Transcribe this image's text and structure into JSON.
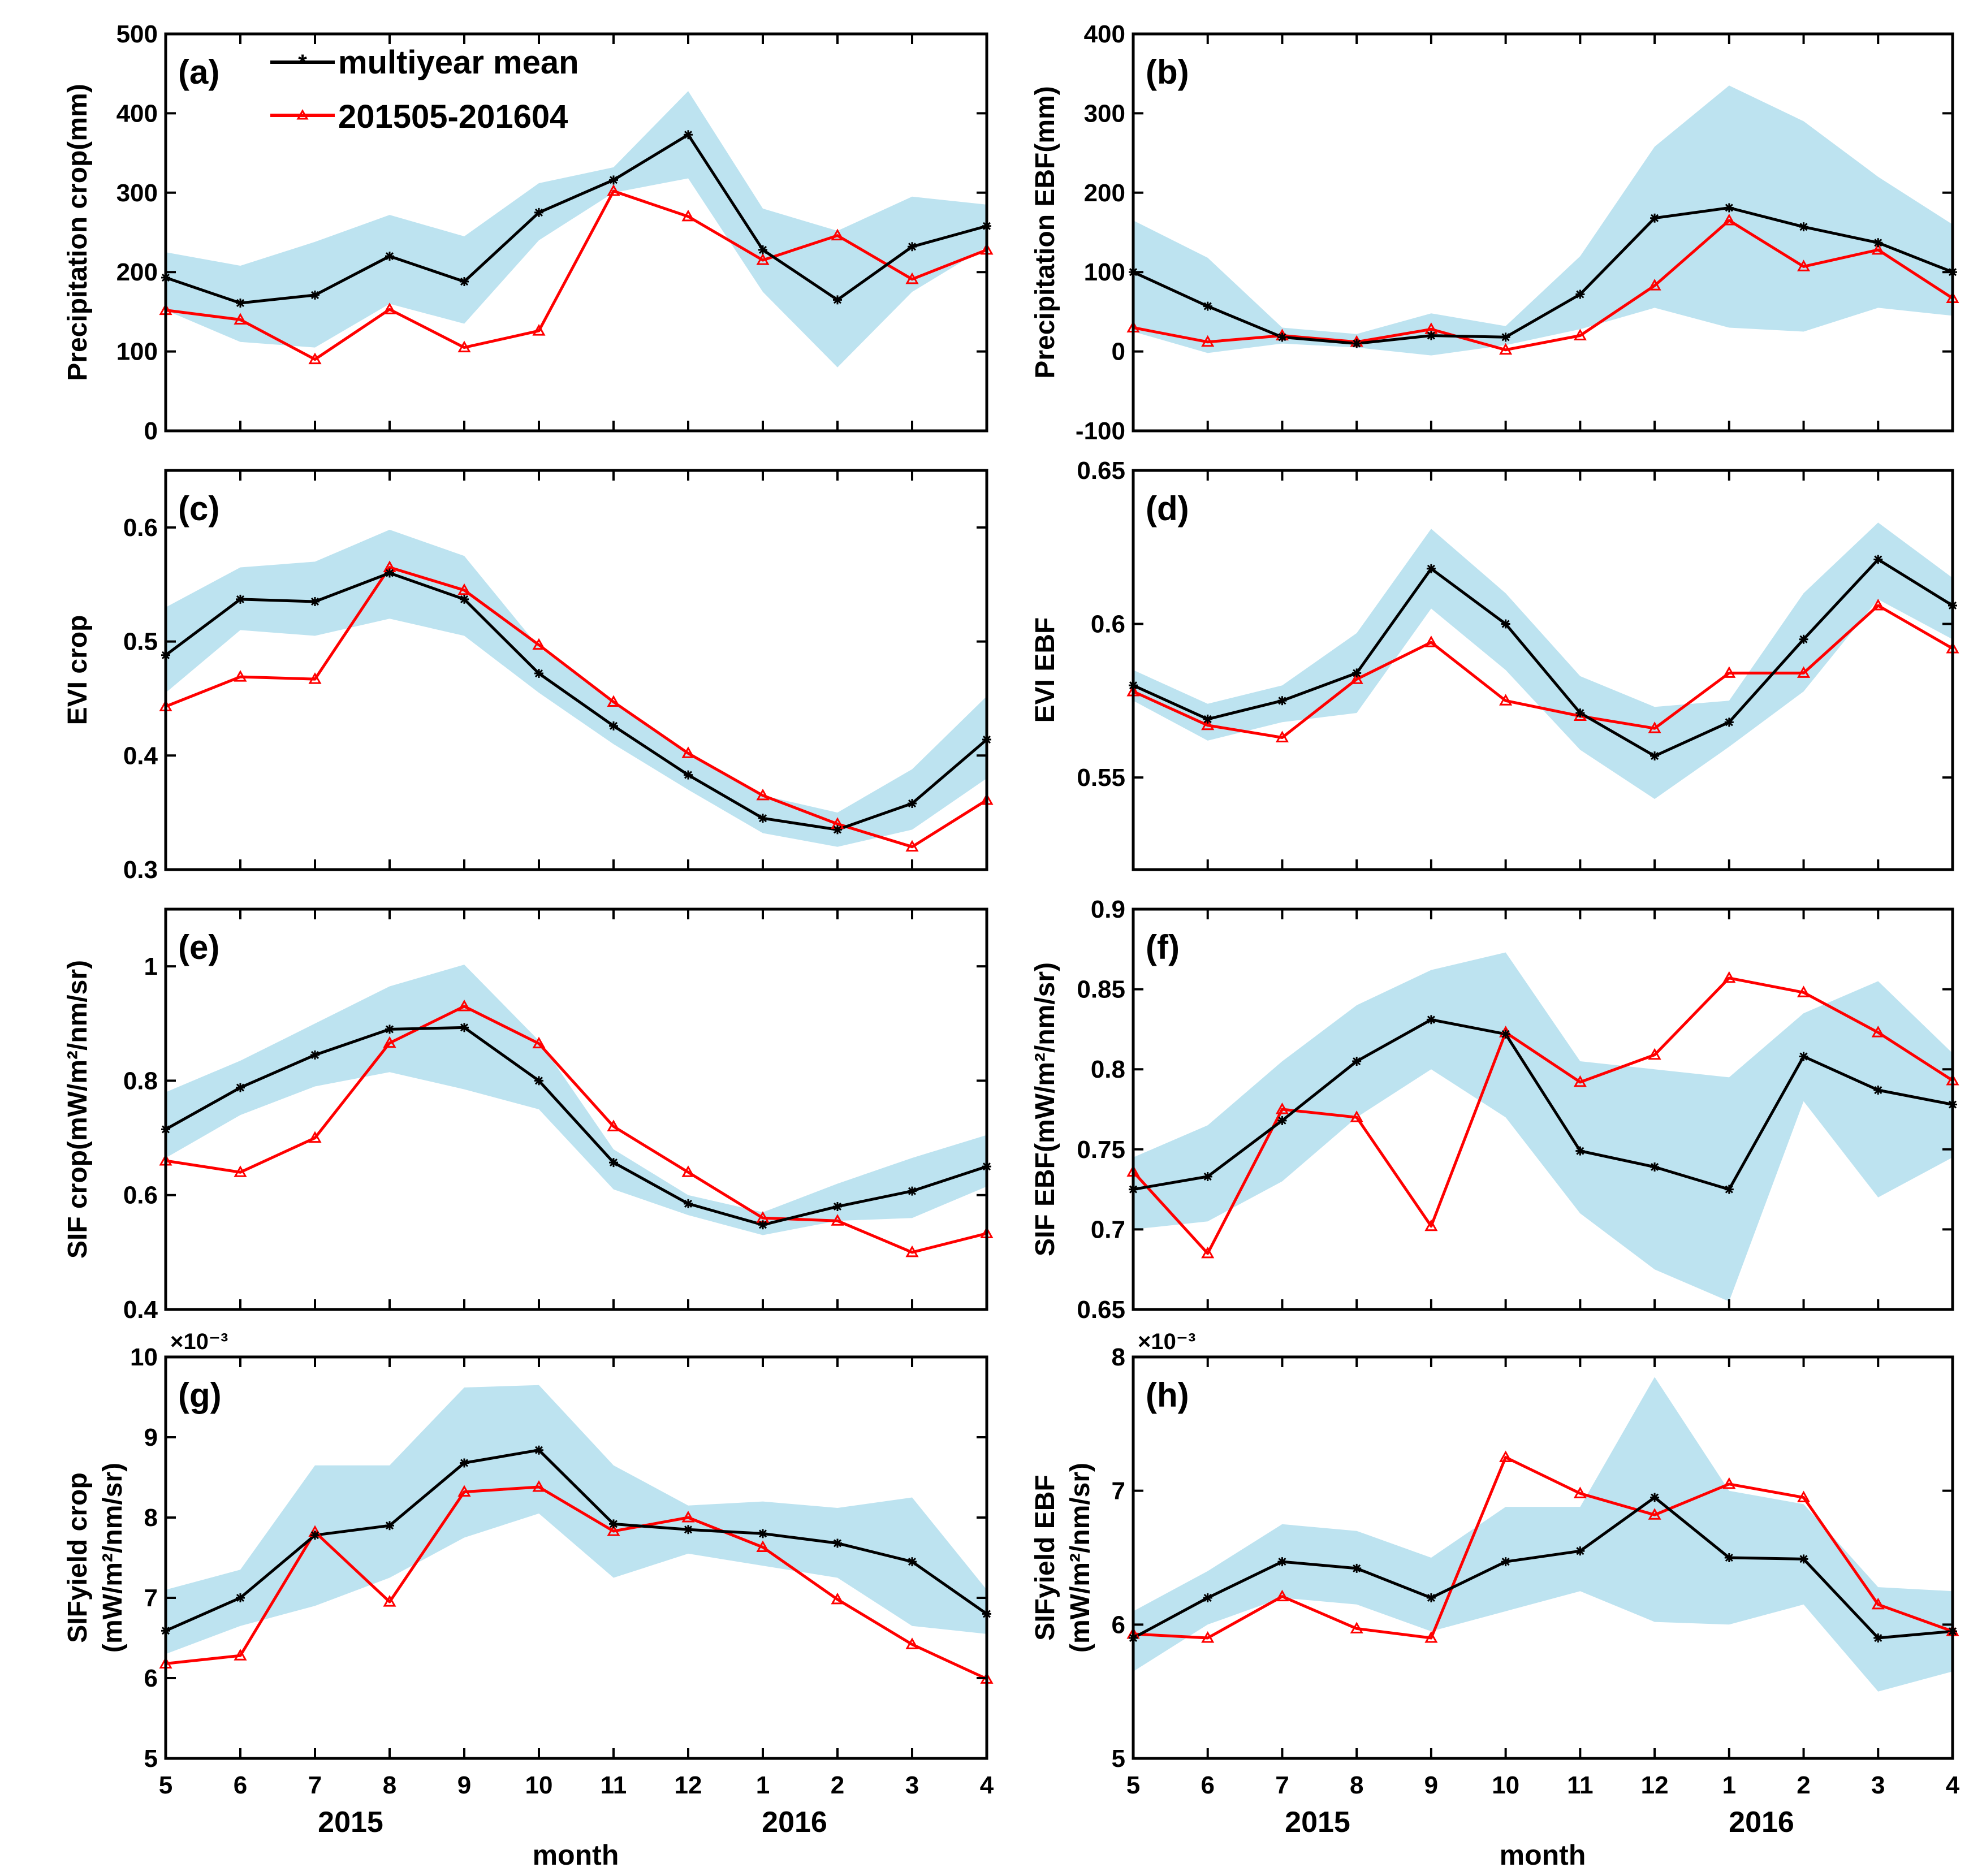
{
  "chart_data": {
    "type": "line",
    "legend": [
      {
        "name": "multiyear mean",
        "color": "#000000",
        "marker": "star"
      },
      {
        "name": "201505-201604",
        "color": "#ff0000",
        "marker": "triangle"
      }
    ],
    "shading_color": "#bde3f0",
    "xlabel": "month",
    "xticks": [
      "5",
      "6",
      "7",
      "8",
      "9",
      "10",
      "11",
      "12",
      "1",
      "2",
      "3",
      "4"
    ],
    "year_labels": [
      "2015",
      "2016"
    ],
    "panels": [
      {
        "label": "(a)",
        "ylabel": "Precipitation crop(mm)",
        "ylim": [
          0,
          500
        ],
        "yticks": [
          0,
          100,
          200,
          300,
          400,
          500
        ],
        "ytick_labels": [
          "0",
          "100",
          "200",
          "300",
          "400",
          "500"
        ],
        "mean": [
          193,
          161,
          171,
          220,
          188,
          275,
          316,
          373,
          228,
          165,
          232,
          258
        ],
        "current": [
          152,
          140,
          90,
          153,
          105,
          126,
          302,
          270,
          215,
          246,
          191,
          228
        ],
        "band_upper": [
          225,
          208,
          238,
          272,
          245,
          312,
          332,
          428,
          280,
          252,
          295,
          285
        ],
        "band_lower": [
          152,
          112,
          105,
          160,
          135,
          240,
          300,
          318,
          175,
          80,
          175,
          232
        ]
      },
      {
        "label": "(b)",
        "ylabel": "Precipitation EBF(mm)",
        "ylim": [
          -100,
          400
        ],
        "yticks": [
          -100,
          0,
          100,
          200,
          300,
          400
        ],
        "ytick_labels": [
          "-100",
          "0",
          "100",
          "200",
          "300",
          "400"
        ],
        "mean": [
          100,
          57,
          18,
          10,
          20,
          18,
          72,
          168,
          181,
          157,
          137,
          100
        ],
        "current": [
          30,
          12,
          20,
          12,
          28,
          2,
          20,
          83,
          165,
          107,
          128,
          67
        ],
        "band_upper": [
          165,
          118,
          30,
          22,
          48,
          32,
          120,
          258,
          335,
          290,
          220,
          160
        ],
        "band_lower": [
          25,
          -2,
          10,
          5,
          -5,
          8,
          28,
          55,
          30,
          25,
          55,
          45
        ]
      },
      {
        "label": "(c)",
        "ylabel": "EVI crop",
        "ylim": [
          0.3,
          0.65
        ],
        "yticks": [
          0.3,
          0.4,
          0.5,
          0.6
        ],
        "ytick_labels": [
          "0.3",
          "0.4",
          "0.5",
          "0.6"
        ],
        "mean": [
          0.488,
          0.537,
          0.535,
          0.56,
          0.537,
          0.472,
          0.426,
          0.383,
          0.345,
          0.335,
          0.358,
          0.414
        ],
        "current": [
          0.443,
          0.469,
          0.467,
          0.565,
          0.545,
          0.497,
          0.447,
          0.402,
          0.365,
          0.34,
          0.32,
          0.361
        ],
        "band_upper": [
          0.53,
          0.565,
          0.57,
          0.598,
          0.575,
          0.495,
          0.447,
          0.403,
          0.365,
          0.35,
          0.388,
          0.452
        ],
        "band_lower": [
          0.455,
          0.51,
          0.505,
          0.52,
          0.505,
          0.455,
          0.41,
          0.37,
          0.332,
          0.32,
          0.335,
          0.38
        ]
      },
      {
        "label": "(d)",
        "ylabel": "EVI EBF",
        "ylim": [
          0.52,
          0.65
        ],
        "yticks": [
          0.55,
          0.6,
          0.65
        ],
        "ytick_labels": [
          "0.55",
          "0.6",
          "0.65"
        ],
        "mean": [
          0.58,
          0.569,
          0.575,
          0.584,
          0.618,
          0.6,
          0.571,
          0.557,
          0.568,
          0.595,
          0.621,
          0.606
        ],
        "current": [
          0.578,
          0.567,
          0.563,
          0.582,
          0.594,
          0.575,
          0.57,
          0.566,
          0.584,
          0.584,
          0.606,
          0.592
        ],
        "band_upper": [
          0.585,
          0.574,
          0.58,
          0.597,
          0.631,
          0.61,
          0.583,
          0.573,
          0.575,
          0.61,
          0.633,
          0.615
        ],
        "band_lower": [
          0.575,
          0.562,
          0.568,
          0.571,
          0.605,
          0.585,
          0.559,
          0.543,
          0.56,
          0.578,
          0.608,
          0.595
        ]
      },
      {
        "label": "(e)",
        "ylabel": "SIF crop(mW/m²/nm/sr)",
        "ylim": [
          0.4,
          1.1
        ],
        "yticks": [
          0.4,
          0.6,
          0.8,
          1.0
        ],
        "ytick_labels": [
          "0.4",
          "0.6",
          "0.8",
          "1"
        ],
        "mean": [
          0.715,
          0.788,
          0.845,
          0.89,
          0.893,
          0.8,
          0.657,
          0.585,
          0.548,
          0.58,
          0.607,
          0.65
        ],
        "current": [
          0.66,
          0.64,
          0.7,
          0.866,
          0.93,
          0.865,
          0.72,
          0.64,
          0.56,
          0.555,
          0.5,
          0.533
        ],
        "band_upper": [
          0.78,
          0.835,
          0.9,
          0.965,
          1.003,
          0.87,
          0.68,
          0.6,
          0.57,
          0.62,
          0.665,
          0.705
        ],
        "band_lower": [
          0.665,
          0.74,
          0.79,
          0.815,
          0.785,
          0.75,
          0.61,
          0.565,
          0.53,
          0.555,
          0.56,
          0.615
        ]
      },
      {
        "label": "(f)",
        "ylabel": "SIF EBF(mW/m²/nm/sr)",
        "ylim": [
          0.65,
          0.9
        ],
        "yticks": [
          0.65,
          0.7,
          0.75,
          0.8,
          0.85,
          0.9
        ],
        "ytick_labels": [
          "0.65",
          "0.7",
          "0.75",
          "0.8",
          "0.85",
          "0.9"
        ],
        "mean": [
          0.725,
          0.733,
          0.768,
          0.805,
          0.831,
          0.822,
          0.749,
          0.739,
          0.725,
          0.808,
          0.787,
          0.778
        ],
        "current": [
          0.736,
          0.685,
          0.775,
          0.77,
          0.702,
          0.823,
          0.792,
          0.809,
          0.857,
          0.848,
          0.823,
          0.793
        ],
        "band_upper": [
          0.745,
          0.765,
          0.805,
          0.84,
          0.862,
          0.873,
          0.805,
          0.8,
          0.795,
          0.835,
          0.855,
          0.81
        ],
        "band_lower": [
          0.7,
          0.705,
          0.73,
          0.77,
          0.8,
          0.77,
          0.71,
          0.675,
          0.655,
          0.78,
          0.72,
          0.745
        ]
      },
      {
        "label": "(g)",
        "ylabel": "SIFyield crop",
        "ylabel2": "(mW/m²/nm/sr)",
        "multiplier": "×10⁻³",
        "ylim": [
          5,
          10
        ],
        "yticks": [
          5,
          6,
          7,
          8,
          9,
          10
        ],
        "ytick_labels": [
          "5",
          "6",
          "7",
          "8",
          "9",
          "10"
        ],
        "mean": [
          6.59,
          7.0,
          7.78,
          7.9,
          8.68,
          8.84,
          7.92,
          7.85,
          7.8,
          7.68,
          7.45,
          6.8
        ],
        "current": [
          6.18,
          6.28,
          7.82,
          6.95,
          8.32,
          8.38,
          7.83,
          8.0,
          7.63,
          6.98,
          6.42,
          5.99
        ],
        "band_upper": [
          7.1,
          7.35,
          8.65,
          8.65,
          9.62,
          9.65,
          8.65,
          8.15,
          8.2,
          8.12,
          8.25,
          7.1
        ],
        "band_lower": [
          6.3,
          6.65,
          6.9,
          7.25,
          7.75,
          8.05,
          7.25,
          7.55,
          7.4,
          7.25,
          6.65,
          6.55
        ]
      },
      {
        "label": "(h)",
        "ylabel": "SIFyield EBF",
        "ylabel2": "(mW/m²/nm/sr)",
        "multiplier": "×10⁻³",
        "ylim": [
          5,
          8
        ],
        "yticks": [
          5,
          6,
          7,
          8
        ],
        "ytick_labels": [
          "5",
          "6",
          "7",
          "8"
        ],
        "mean": [
          5.9,
          6.2,
          6.47,
          6.42,
          6.2,
          6.47,
          6.55,
          6.95,
          6.5,
          6.49,
          5.9,
          5.95
        ],
        "current": [
          5.93,
          5.9,
          6.21,
          5.97,
          5.9,
          7.25,
          6.98,
          6.82,
          7.05,
          6.95,
          6.15,
          5.95
        ],
        "band_upper": [
          6.1,
          6.4,
          6.75,
          6.7,
          6.5,
          6.88,
          6.88,
          7.85,
          7.0,
          6.9,
          6.28,
          6.25
        ],
        "band_lower": [
          5.65,
          6.0,
          6.2,
          6.15,
          5.95,
          6.1,
          6.25,
          6.02,
          6.0,
          6.15,
          5.5,
          5.65
        ]
      }
    ]
  }
}
